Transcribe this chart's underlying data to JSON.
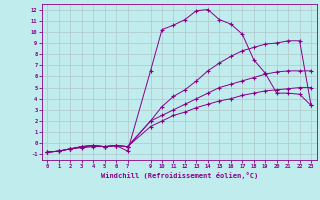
{
  "xlabel": "Windchill (Refroidissement éolien,°C)",
  "bg_color": "#c0ecee",
  "line_color": "#880088",
  "grid_color": "#b0c8c8",
  "xlim": [
    -0.5,
    23.5
  ],
  "ylim": [
    -1.5,
    12.5
  ],
  "xtick_vals": [
    0,
    1,
    2,
    3,
    4,
    5,
    6,
    7,
    9,
    10,
    11,
    12,
    13,
    14,
    15,
    16,
    17,
    18,
    19,
    20,
    21,
    22,
    23
  ],
  "ytick_vals": [
    -1,
    0,
    1,
    2,
    3,
    4,
    5,
    6,
    7,
    8,
    9,
    10,
    11,
    12
  ],
  "line_spike_x": [
    0,
    1,
    2,
    3,
    4,
    5,
    6,
    7,
    9,
    10,
    11,
    12,
    13,
    14,
    15,
    16,
    17,
    18,
    19,
    20,
    21,
    22,
    23
  ],
  "line_spike_y": [
    -0.8,
    -0.7,
    -0.5,
    -0.4,
    -0.3,
    -0.3,
    -0.2,
    -0.7,
    6.5,
    10.2,
    10.6,
    11.1,
    11.9,
    12.0,
    11.1,
    10.7,
    9.8,
    7.5,
    6.3,
    4.5,
    4.5,
    4.4,
    3.4
  ],
  "line_upper_x": [
    0,
    1,
    2,
    3,
    4,
    5,
    6,
    7,
    9,
    10,
    11,
    12,
    13,
    14,
    15,
    16,
    17,
    18,
    19,
    20,
    21,
    22,
    23
  ],
  "line_upper_y": [
    -0.8,
    -0.7,
    -0.5,
    -0.3,
    -0.2,
    -0.3,
    -0.2,
    -0.3,
    2.0,
    3.3,
    4.2,
    4.8,
    5.6,
    6.5,
    7.2,
    7.8,
    8.3,
    8.6,
    8.9,
    9.0,
    9.2,
    9.2,
    3.4
  ],
  "line_mid_x": [
    0,
    1,
    2,
    3,
    4,
    5,
    6,
    7,
    9,
    10,
    11,
    12,
    13,
    14,
    15,
    16,
    17,
    18,
    19,
    20,
    21,
    22,
    23
  ],
  "line_mid_y": [
    -0.8,
    -0.7,
    -0.5,
    -0.3,
    -0.2,
    -0.3,
    -0.2,
    -0.3,
    2.0,
    2.5,
    3.0,
    3.5,
    4.0,
    4.5,
    5.0,
    5.3,
    5.6,
    5.9,
    6.2,
    6.4,
    6.5,
    6.5,
    6.5
  ],
  "line_low_x": [
    0,
    1,
    2,
    3,
    4,
    5,
    6,
    7,
    9,
    10,
    11,
    12,
    13,
    14,
    15,
    16,
    17,
    18,
    19,
    20,
    21,
    22,
    23
  ],
  "line_low_y": [
    -0.8,
    -0.7,
    -0.5,
    -0.3,
    -0.2,
    -0.3,
    -0.2,
    -0.3,
    1.5,
    2.0,
    2.5,
    2.8,
    3.2,
    3.5,
    3.8,
    4.0,
    4.3,
    4.5,
    4.7,
    4.8,
    4.9,
    5.0,
    5.0
  ]
}
